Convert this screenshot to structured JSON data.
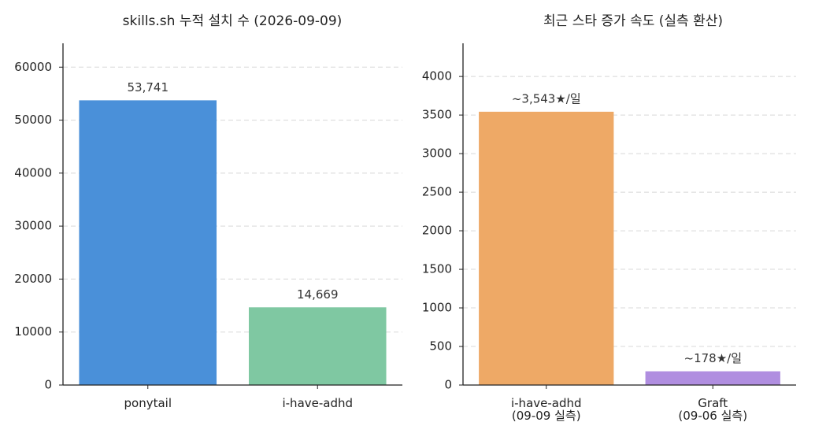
{
  "chart_data": [
    {
      "type": "bar",
      "title": "skills.sh 누적 설치 수 (2026-09-09)",
      "categories": [
        "ponytail",
        "i-have-adhd"
      ],
      "values": [
        53741,
        14669
      ],
      "value_labels": [
        "53,741",
        "14,669"
      ],
      "colors": [
        "#4a90d9",
        "#7fc8a2"
      ],
      "ylim": [
        0,
        64500
      ],
      "yticks": [
        0,
        10000,
        20000,
        30000,
        40000,
        50000,
        60000
      ],
      "grid": true
    },
    {
      "type": "bar",
      "title": "최근 스타 증가 속도 (실측 환산)",
      "categories": [
        "i-have-adhd\n(09-09 실측)",
        "Graft\n(09-06 실측)"
      ],
      "values": [
        3543,
        178
      ],
      "value_labels": [
        "~3,543★/일",
        "~178★/일"
      ],
      "colors": [
        "#eea966",
        "#b08ee0"
      ],
      "ylim": [
        0,
        4430
      ],
      "yticks": [
        0,
        500,
        1000,
        1500,
        2000,
        2500,
        3000,
        3500,
        4000
      ],
      "grid": true
    }
  ]
}
